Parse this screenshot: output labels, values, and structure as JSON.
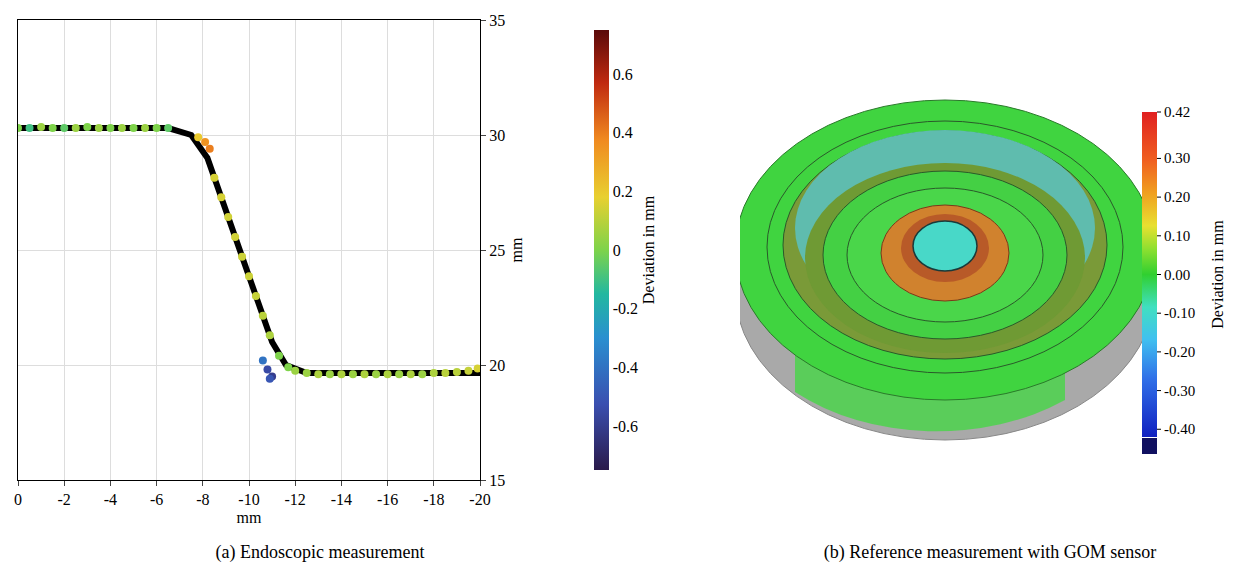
{
  "chart_data": [
    {
      "type": "scatter",
      "caption": "(a) Endoscopic measurement",
      "xlabel": "mm",
      "ylabel": "mm",
      "x": [
        0,
        -0.5,
        -1,
        -1.5,
        -2,
        -2.5,
        -3,
        -3.5,
        -4,
        -4.5,
        -5,
        -5.5,
        -6,
        -6.5,
        -7.8,
        -8.1,
        -8.3,
        -8.5,
        -8.8,
        -9.1,
        -9.4,
        -9.7,
        -10.0,
        -10.3,
        -10.6,
        -10.9,
        -11.3,
        -11.7,
        -12.0,
        -12.5,
        -13,
        -13.5,
        -14,
        -14.5,
        -15,
        -15.5,
        -16,
        -16.5,
        -17,
        -17.5,
        -18,
        -18.5,
        -19,
        -19.5,
        -19.9,
        -10.6,
        -10.8,
        -11.0,
        -10.9
      ],
      "y": [
        30.3,
        30.3,
        30.35,
        30.3,
        30.3,
        30.3,
        30.35,
        30.3,
        30.3,
        30.3,
        30.3,
        30.3,
        30.3,
        30.3,
        29.9,
        29.7,
        29.4,
        28.14,
        27.29,
        26.43,
        25.57,
        24.71,
        23.86,
        23.0,
        22.14,
        21.29,
        20.4,
        19.9,
        19.75,
        19.65,
        19.6,
        19.6,
        19.6,
        19.6,
        19.6,
        19.6,
        19.6,
        19.6,
        19.6,
        19.6,
        19.65,
        19.65,
        19.7,
        19.75,
        19.85,
        20.2,
        19.8,
        19.5,
        19.4
      ],
      "deviation": [
        0.0,
        -0.1,
        0.05,
        0.0,
        -0.05,
        0.05,
        0.0,
        0.05,
        0.0,
        0.05,
        0.0,
        0.05,
        0.0,
        -0.05,
        0.2,
        0.35,
        0.4,
        0.15,
        0.15,
        0.14,
        0.14,
        0.13,
        0.13,
        0.12,
        0.1,
        0.08,
        0.0,
        0.0,
        0.05,
        0.05,
        0.08,
        0.05,
        0.08,
        0.05,
        0.08,
        0.05,
        0.08,
        0.05,
        0.08,
        0.05,
        0.08,
        0.1,
        0.1,
        0.12,
        0.15,
        -0.4,
        -0.55,
        -0.6,
        -0.5
      ],
      "nominal": {
        "x": [
          0,
          -6.5,
          -7.5,
          -8.2,
          -11.0,
          -11.6,
          -12.5,
          -20
        ],
        "y": [
          30.3,
          30.3,
          30.0,
          29.0,
          21.0,
          20.0,
          19.65,
          19.65
        ],
        "color": "#000000"
      },
      "xlim": [
        0,
        -20
      ],
      "xticks": [
        0,
        -2,
        -4,
        -6,
        -8,
        -10,
        -12,
        -14,
        -16,
        -18,
        -20
      ],
      "ylim": [
        15,
        35
      ],
      "yticks": [
        15,
        20,
        25,
        30,
        35
      ],
      "grid": true,
      "colorbar": {
        "title": "Deviation in mm",
        "range": [
          -0.75,
          0.75
        ],
        "ticks": [
          -0.6,
          -0.4,
          -0.2,
          0,
          0.2,
          0.4,
          0.6
        ]
      }
    },
    {
      "type": "image",
      "caption": "(b) Reference measurement with GOM sensor",
      "colorbar": {
        "title": "Deviation in mm",
        "range": [
          -0.42,
          0.42
        ],
        "ticks": [
          0.42,
          {
            "value": 0.3,
            "label": "0.30"
          },
          {
            "value": 0.2,
            "label": "0.20"
          },
          {
            "value": 0.1,
            "label": "0.10"
          },
          {
            "value": 0,
            "label": "0.00"
          },
          {
            "value": -0.1,
            "label": "-0.10"
          },
          {
            "value": -0.2,
            "label": "-0.20"
          },
          {
            "value": -0.3,
            "label": "-0.30"
          },
          {
            "value": -0.4,
            "label": "-0.40"
          }
        ]
      }
    }
  ]
}
